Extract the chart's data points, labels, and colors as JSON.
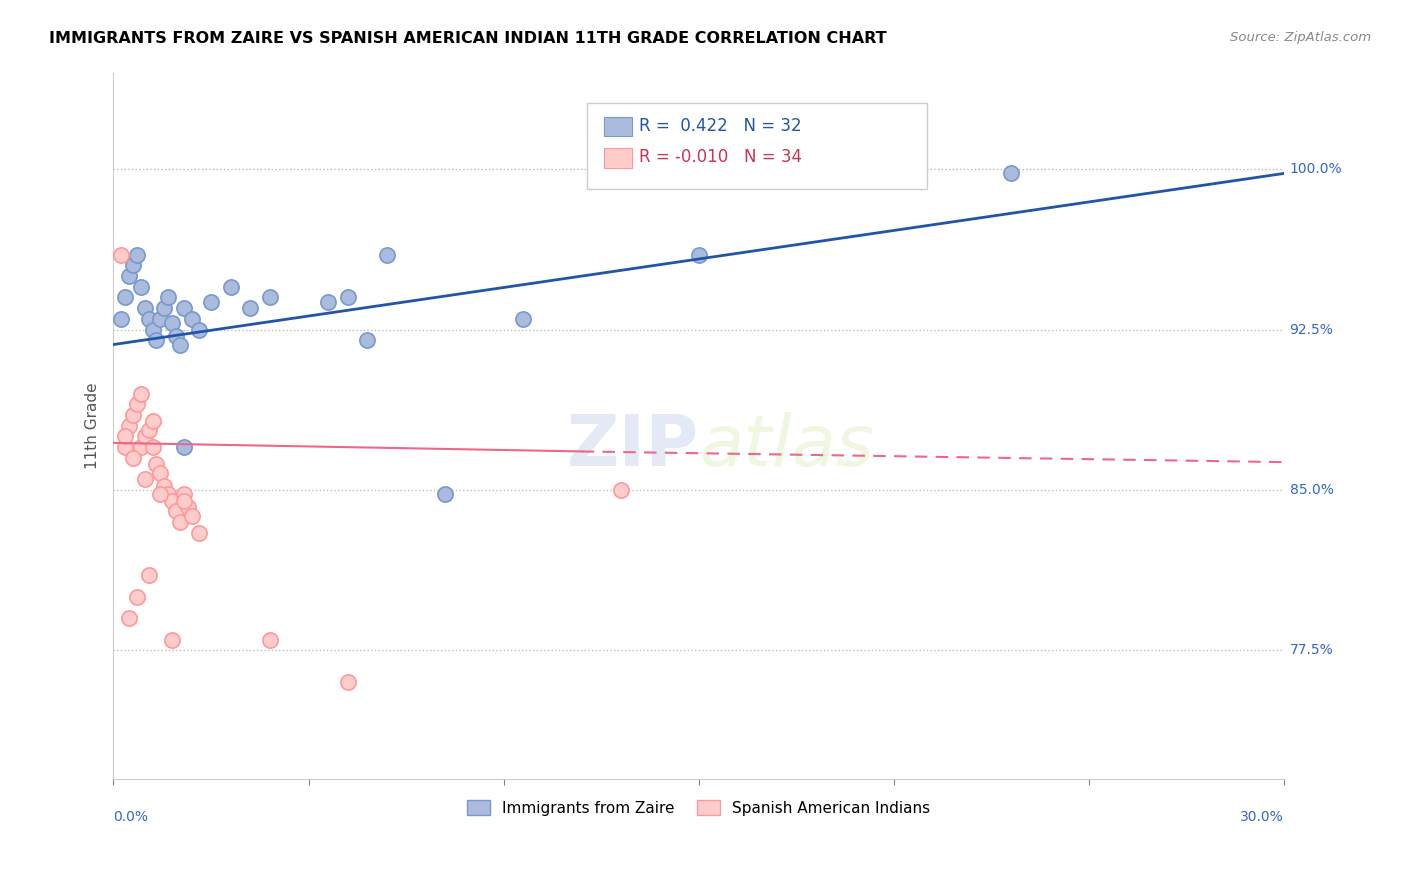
{
  "title": "IMMIGRANTS FROM ZAIRE VS SPANISH AMERICAN INDIAN 11TH GRADE CORRELATION CHART",
  "source": "Source: ZipAtlas.com",
  "ylabel": "11th Grade",
  "y_tick_labels": [
    "77.5%",
    "85.0%",
    "92.5%",
    "100.0%"
  ],
  "y_tick_values": [
    0.775,
    0.85,
    0.925,
    1.0
  ],
  "x_lim": [
    0.0,
    0.3
  ],
  "y_lim": [
    0.715,
    1.045
  ],
  "R_blue": 0.422,
  "N_blue": 32,
  "R_pink": -0.01,
  "N_pink": 34,
  "blue_dot_color": "#aabbdd",
  "blue_dot_edge": "#7799cc",
  "pink_dot_color": "#ffcccc",
  "pink_dot_edge": "#ff9999",
  "blue_line_color": "#2255aa",
  "pink_line_color": "#ee6688",
  "legend_label_blue": "Immigrants from Zaire",
  "legend_label_pink": "Spanish American Indians",
  "blue_x": [
    0.002,
    0.003,
    0.004,
    0.005,
    0.006,
    0.007,
    0.008,
    0.009,
    0.01,
    0.011,
    0.012,
    0.013,
    0.014,
    0.015,
    0.016,
    0.017,
    0.018,
    0.02,
    0.022,
    0.025,
    0.03,
    0.04,
    0.06,
    0.07,
    0.085,
    0.105,
    0.15,
    0.23,
    0.055,
    0.035,
    0.065,
    0.018
  ],
  "blue_y": [
    0.93,
    0.94,
    0.95,
    0.955,
    0.96,
    0.945,
    0.935,
    0.93,
    0.925,
    0.92,
    0.93,
    0.935,
    0.94,
    0.928,
    0.922,
    0.918,
    0.935,
    0.93,
    0.925,
    0.938,
    0.945,
    0.94,
    0.94,
    0.96,
    0.848,
    0.93,
    0.96,
    0.998,
    0.938,
    0.935,
    0.92,
    0.87
  ],
  "pink_x": [
    0.002,
    0.003,
    0.004,
    0.005,
    0.006,
    0.007,
    0.007,
    0.008,
    0.009,
    0.01,
    0.01,
    0.011,
    0.012,
    0.013,
    0.014,
    0.015,
    0.016,
    0.017,
    0.018,
    0.019,
    0.02,
    0.022,
    0.003,
    0.005,
    0.008,
    0.012,
    0.018,
    0.04,
    0.06,
    0.13,
    0.004,
    0.006,
    0.009,
    0.015
  ],
  "pink_y": [
    0.96,
    0.87,
    0.88,
    0.885,
    0.89,
    0.895,
    0.87,
    0.875,
    0.878,
    0.882,
    0.87,
    0.862,
    0.858,
    0.852,
    0.848,
    0.845,
    0.84,
    0.835,
    0.848,
    0.842,
    0.838,
    0.83,
    0.875,
    0.865,
    0.855,
    0.848,
    0.845,
    0.78,
    0.76,
    0.85,
    0.79,
    0.8,
    0.81,
    0.78
  ]
}
